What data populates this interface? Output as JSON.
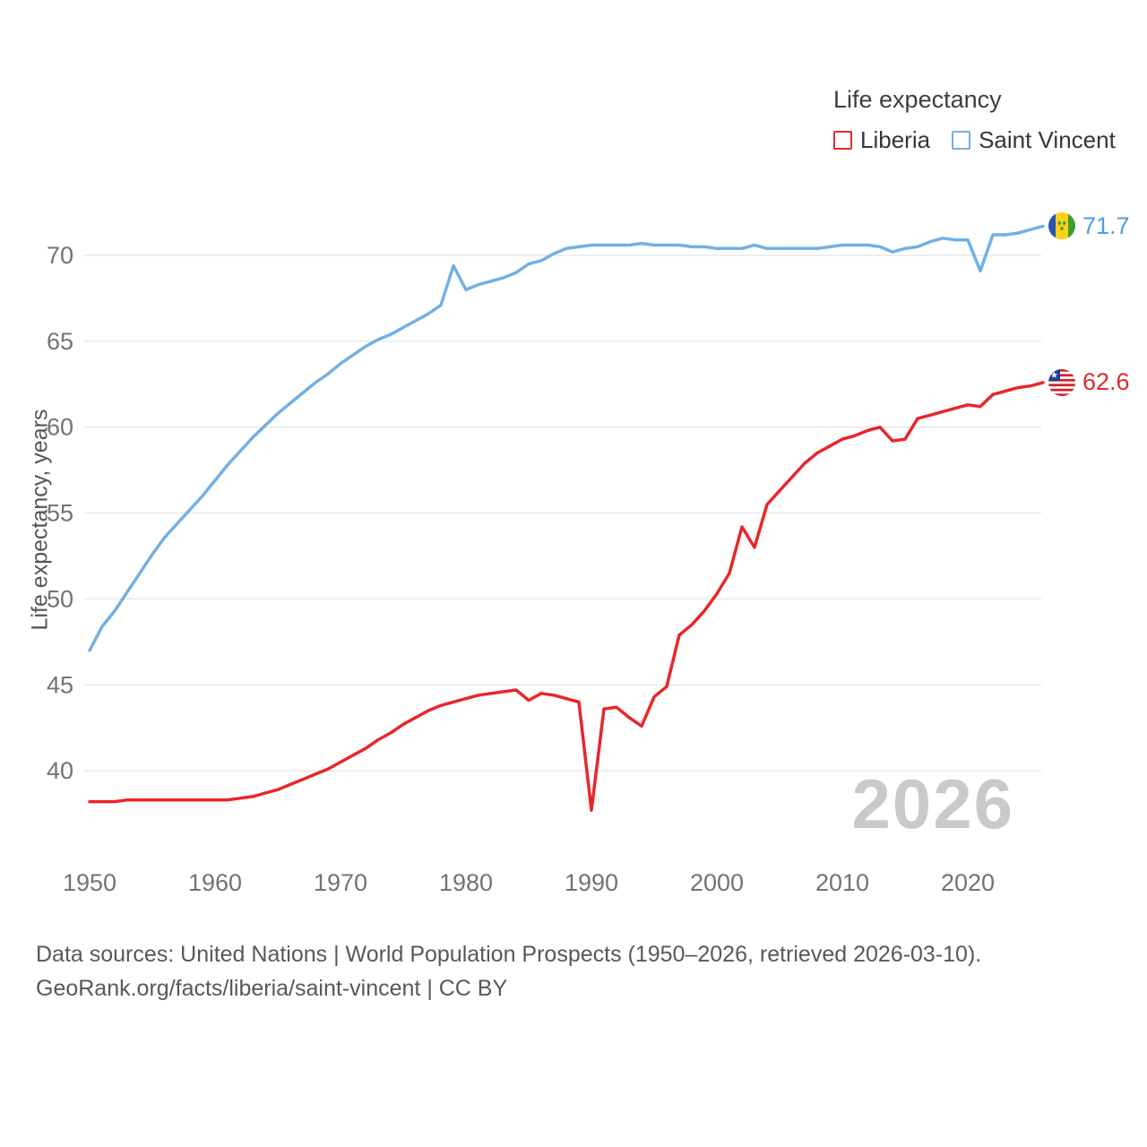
{
  "legend": {
    "title": "Life expectancy",
    "items": [
      {
        "label": "Liberia",
        "color": "#e8262a"
      },
      {
        "label": "Saint Vincent",
        "color": "#72b0e3"
      }
    ]
  },
  "watermark": "2026",
  "chart_data": {
    "type": "line",
    "title": "Life expectancy",
    "xlabel": "",
    "ylabel": "Life expectancy, years",
    "grid": true,
    "legend_position": "top-right",
    "ylim": [
      36.5,
      73
    ],
    "x_ticks": [
      1950,
      1960,
      1970,
      1980,
      1990,
      2000,
      2010,
      2020
    ],
    "y_ticks": [
      40,
      45,
      50,
      55,
      60,
      65,
      70
    ],
    "x": [
      1950,
      1951,
      1952,
      1953,
      1954,
      1955,
      1956,
      1957,
      1958,
      1959,
      1960,
      1961,
      1962,
      1963,
      1964,
      1965,
      1966,
      1967,
      1968,
      1969,
      1970,
      1971,
      1972,
      1973,
      1974,
      1975,
      1976,
      1977,
      1978,
      1979,
      1980,
      1981,
      1982,
      1983,
      1984,
      1985,
      1986,
      1987,
      1988,
      1989,
      1990,
      1991,
      1992,
      1993,
      1994,
      1995,
      1996,
      1997,
      1998,
      1999,
      2000,
      2001,
      2002,
      2003,
      2004,
      2005,
      2006,
      2007,
      2008,
      2009,
      2010,
      2011,
      2012,
      2013,
      2014,
      2015,
      2016,
      2017,
      2018,
      2019,
      2020,
      2021,
      2022,
      2023,
      2024,
      2025,
      2026
    ],
    "series": [
      {
        "name": "Liberia",
        "color": "#e8262a",
        "label_color": "#e8262a",
        "end_label": "62.6",
        "values": [
          38.2,
          38.2,
          38.2,
          38.3,
          38.3,
          38.3,
          38.3,
          38.3,
          38.3,
          38.3,
          38.3,
          38.3,
          38.4,
          38.5,
          38.7,
          38.9,
          39.2,
          39.5,
          39.8,
          40.1,
          40.5,
          40.9,
          41.3,
          41.8,
          42.2,
          42.7,
          43.1,
          43.5,
          43.8,
          44.0,
          44.2,
          44.4,
          44.5,
          44.6,
          44.7,
          44.1,
          44.5,
          44.4,
          44.2,
          44.0,
          37.7,
          43.6,
          43.7,
          43.1,
          42.6,
          44.3,
          44.9,
          47.9,
          48.5,
          49.3,
          50.3,
          51.5,
          54.2,
          53.0,
          55.5,
          56.3,
          57.1,
          57.9,
          58.5,
          58.9,
          59.3,
          59.5,
          59.8,
          60.0,
          59.2,
          59.3,
          60.5,
          60.7,
          60.9,
          61.1,
          61.3,
          61.2,
          61.9,
          62.1,
          62.3,
          62.4,
          62.6
        ]
      },
      {
        "name": "Saint Vincent",
        "color": "#72b0e3",
        "label_color": "#4e9ddd",
        "end_label": "71.7",
        "values": [
          47.0,
          48.4,
          49.3,
          50.4,
          51.5,
          52.6,
          53.6,
          54.4,
          55.2,
          56.0,
          56.9,
          57.8,
          58.6,
          59.4,
          60.1,
          60.8,
          61.4,
          62.0,
          62.6,
          63.1,
          63.7,
          64.2,
          64.7,
          65.1,
          65.4,
          65.8,
          66.2,
          66.6,
          67.1,
          69.4,
          68.0,
          68.3,
          68.5,
          68.7,
          69.0,
          69.5,
          69.7,
          70.1,
          70.4,
          70.5,
          70.6,
          70.6,
          70.6,
          70.6,
          70.7,
          70.6,
          70.6,
          70.6,
          70.5,
          70.5,
          70.4,
          70.4,
          70.4,
          70.6,
          70.4,
          70.4,
          70.4,
          70.4,
          70.4,
          70.5,
          70.6,
          70.6,
          70.6,
          70.5,
          70.2,
          70.4,
          70.5,
          70.8,
          71.0,
          70.9,
          70.9,
          69.1,
          71.2,
          71.2,
          71.3,
          71.5,
          71.7
        ]
      }
    ]
  },
  "footer": {
    "line1": "Data sources: United Nations | World Population Prospects (1950–2026, retrieved 2026-03-10).",
    "line2": "GeoRank.org/facts/liberia/saint-vincent | CC BY"
  }
}
